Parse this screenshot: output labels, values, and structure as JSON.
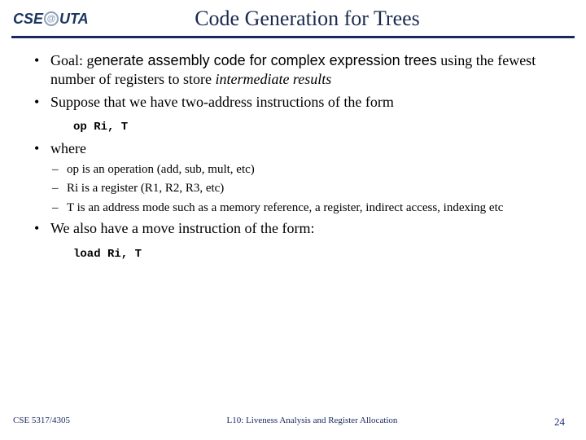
{
  "logo": {
    "left": "CSE",
    "right": "UTA"
  },
  "title": "Code Generation for Trees",
  "bullets": [
    {
      "pre": "Goal: g",
      "sans": "enerate assembly code for complex expression trees",
      "post1": "using the fewest number of registers to store ",
      "italic": "intermediate results"
    },
    {
      "text": "Suppose that we have two-address instructions of the form"
    }
  ],
  "code1": "op  Ri, T",
  "where": "where",
  "subs": [
    "op is an operation (add, sub, mult, etc)",
    "Ri is a register (R1, R2, R3, etc)",
    "T is an address mode such as a memory reference, a register, indirect access, indexing etc"
  ],
  "bullet3": "We also have a move instruction of the form:",
  "code2": "load  Ri, T",
  "footer": {
    "course": "CSE 5317/4305",
    "lecture": "L10: Liveness Analysis and Register Allocation",
    "page": "24"
  }
}
